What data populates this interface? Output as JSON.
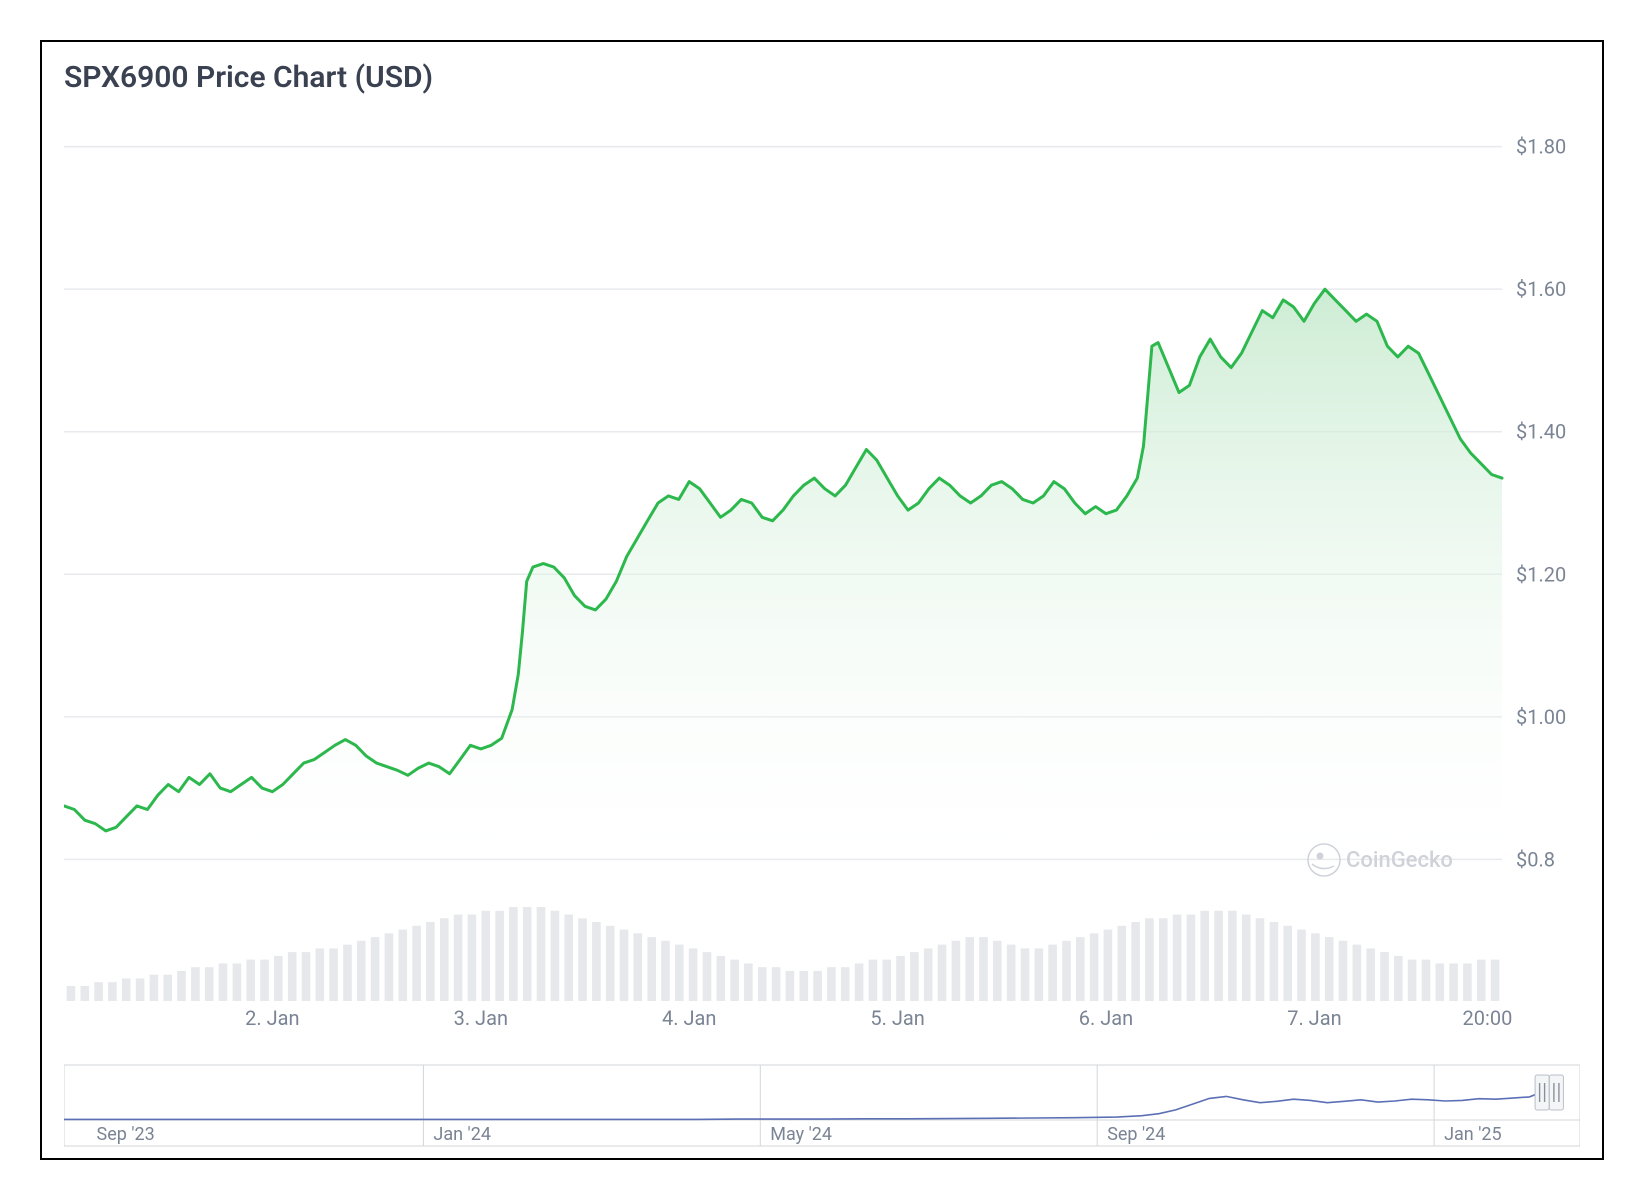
{
  "title": "SPX6900 Price Chart (USD)",
  "watermark": "CoinGecko",
  "main_chart": {
    "type": "area",
    "line_color": "#2db84d",
    "area_gradient_top": "#c4e9cc",
    "area_gradient_bottom": "#ffffff",
    "background_color": "#ffffff",
    "grid_color": "#e7e9ed",
    "label_color": "#7a8494",
    "title_color": "#3a4150",
    "title_fontsize": 30,
    "label_fontsize": 20,
    "line_width": 3,
    "y_axis": {
      "min": 0.75,
      "max": 1.85,
      "ticks": [
        0.8,
        1.0,
        1.2,
        1.4,
        1.6,
        1.8
      ],
      "tick_labels": [
        "$0.8",
        "$1.00",
        "$1.20",
        "$1.40",
        "$1.60",
        "$1.80"
      ]
    },
    "x_axis": {
      "start": 1.0,
      "end": 7.9,
      "ticks": [
        2,
        3,
        4,
        5,
        6,
        7,
        7.83
      ],
      "tick_labels": [
        "2. Jan",
        "3. Jan",
        "4. Jan",
        "5. Jan",
        "6. Jan",
        "7. Jan",
        "20:00"
      ]
    },
    "series": [
      [
        1.0,
        0.875
      ],
      [
        1.05,
        0.87
      ],
      [
        1.1,
        0.855
      ],
      [
        1.15,
        0.85
      ],
      [
        1.2,
        0.84
      ],
      [
        1.25,
        0.845
      ],
      [
        1.3,
        0.86
      ],
      [
        1.35,
        0.875
      ],
      [
        1.4,
        0.87
      ],
      [
        1.45,
        0.89
      ],
      [
        1.5,
        0.905
      ],
      [
        1.55,
        0.895
      ],
      [
        1.6,
        0.915
      ],
      [
        1.65,
        0.905
      ],
      [
        1.7,
        0.92
      ],
      [
        1.75,
        0.9
      ],
      [
        1.8,
        0.895
      ],
      [
        1.85,
        0.905
      ],
      [
        1.9,
        0.915
      ],
      [
        1.95,
        0.9
      ],
      [
        2.0,
        0.895
      ],
      [
        2.05,
        0.905
      ],
      [
        2.1,
        0.92
      ],
      [
        2.15,
        0.935
      ],
      [
        2.2,
        0.94
      ],
      [
        2.25,
        0.95
      ],
      [
        2.3,
        0.96
      ],
      [
        2.35,
        0.968
      ],
      [
        2.4,
        0.96
      ],
      [
        2.45,
        0.945
      ],
      [
        2.5,
        0.935
      ],
      [
        2.55,
        0.93
      ],
      [
        2.6,
        0.925
      ],
      [
        2.65,
        0.918
      ],
      [
        2.7,
        0.928
      ],
      [
        2.75,
        0.935
      ],
      [
        2.8,
        0.93
      ],
      [
        2.85,
        0.92
      ],
      [
        2.9,
        0.94
      ],
      [
        2.95,
        0.96
      ],
      [
        3.0,
        0.955
      ],
      [
        3.05,
        0.96
      ],
      [
        3.1,
        0.97
      ],
      [
        3.15,
        1.01
      ],
      [
        3.18,
        1.06
      ],
      [
        3.2,
        1.12
      ],
      [
        3.22,
        1.19
      ],
      [
        3.25,
        1.21
      ],
      [
        3.3,
        1.215
      ],
      [
        3.35,
        1.21
      ],
      [
        3.4,
        1.195
      ],
      [
        3.45,
        1.17
      ],
      [
        3.5,
        1.155
      ],
      [
        3.55,
        1.15
      ],
      [
        3.6,
        1.165
      ],
      [
        3.65,
        1.19
      ],
      [
        3.7,
        1.225
      ],
      [
        3.75,
        1.25
      ],
      [
        3.8,
        1.275
      ],
      [
        3.85,
        1.3
      ],
      [
        3.9,
        1.31
      ],
      [
        3.95,
        1.305
      ],
      [
        4.0,
        1.33
      ],
      [
        4.05,
        1.32
      ],
      [
        4.1,
        1.3
      ],
      [
        4.15,
        1.28
      ],
      [
        4.2,
        1.29
      ],
      [
        4.25,
        1.305
      ],
      [
        4.3,
        1.3
      ],
      [
        4.35,
        1.28
      ],
      [
        4.4,
        1.275
      ],
      [
        4.45,
        1.29
      ],
      [
        4.5,
        1.31
      ],
      [
        4.55,
        1.325
      ],
      [
        4.6,
        1.335
      ],
      [
        4.65,
        1.32
      ],
      [
        4.7,
        1.31
      ],
      [
        4.75,
        1.325
      ],
      [
        4.8,
        1.35
      ],
      [
        4.85,
        1.375
      ],
      [
        4.9,
        1.36
      ],
      [
        4.95,
        1.335
      ],
      [
        5.0,
        1.31
      ],
      [
        5.05,
        1.29
      ],
      [
        5.1,
        1.3
      ],
      [
        5.15,
        1.32
      ],
      [
        5.2,
        1.335
      ],
      [
        5.25,
        1.325
      ],
      [
        5.3,
        1.31
      ],
      [
        5.35,
        1.3
      ],
      [
        5.4,
        1.31
      ],
      [
        5.45,
        1.325
      ],
      [
        5.5,
        1.33
      ],
      [
        5.55,
        1.32
      ],
      [
        5.6,
        1.305
      ],
      [
        5.65,
        1.3
      ],
      [
        5.7,
        1.31
      ],
      [
        5.75,
        1.33
      ],
      [
        5.8,
        1.32
      ],
      [
        5.85,
        1.3
      ],
      [
        5.9,
        1.285
      ],
      [
        5.95,
        1.295
      ],
      [
        6.0,
        1.285
      ],
      [
        6.05,
        1.29
      ],
      [
        6.1,
        1.31
      ],
      [
        6.15,
        1.335
      ],
      [
        6.18,
        1.38
      ],
      [
        6.2,
        1.45
      ],
      [
        6.22,
        1.52
      ],
      [
        6.25,
        1.525
      ],
      [
        6.3,
        1.49
      ],
      [
        6.35,
        1.455
      ],
      [
        6.4,
        1.465
      ],
      [
        6.45,
        1.505
      ],
      [
        6.5,
        1.53
      ],
      [
        6.55,
        1.505
      ],
      [
        6.6,
        1.49
      ],
      [
        6.65,
        1.51
      ],
      [
        6.7,
        1.54
      ],
      [
        6.75,
        1.57
      ],
      [
        6.8,
        1.56
      ],
      [
        6.85,
        1.585
      ],
      [
        6.9,
        1.575
      ],
      [
        6.95,
        1.555
      ],
      [
        7.0,
        1.58
      ],
      [
        7.05,
        1.6
      ],
      [
        7.1,
        1.585
      ],
      [
        7.15,
        1.57
      ],
      [
        7.2,
        1.555
      ],
      [
        7.25,
        1.565
      ],
      [
        7.3,
        1.555
      ],
      [
        7.35,
        1.52
      ],
      [
        7.4,
        1.505
      ],
      [
        7.45,
        1.52
      ],
      [
        7.5,
        1.51
      ],
      [
        7.55,
        1.48
      ],
      [
        7.6,
        1.45
      ],
      [
        7.65,
        1.42
      ],
      [
        7.7,
        1.39
      ],
      [
        7.75,
        1.37
      ],
      [
        7.8,
        1.355
      ],
      [
        7.85,
        1.34
      ],
      [
        7.9,
        1.335
      ]
    ],
    "volume": {
      "bar_color": "#e6e8eb",
      "values": [
        8,
        8,
        10,
        10,
        12,
        12,
        14,
        14,
        16,
        18,
        18,
        20,
        20,
        22,
        22,
        24,
        26,
        26,
        28,
        28,
        30,
        32,
        34,
        36,
        38,
        40,
        42,
        44,
        46,
        46,
        48,
        48,
        50,
        50,
        50,
        48,
        46,
        44,
        42,
        40,
        38,
        36,
        34,
        32,
        30,
        28,
        26,
        24,
        22,
        20,
        18,
        18,
        16,
        16,
        16,
        18,
        18,
        20,
        22,
        22,
        24,
        26,
        28,
        30,
        32,
        34,
        34,
        32,
        30,
        28,
        28,
        30,
        32,
        34,
        36,
        38,
        40,
        42,
        44,
        44,
        46,
        46,
        48,
        48,
        48,
        46,
        44,
        42,
        40,
        38,
        36,
        34,
        32,
        30,
        28,
        26,
        24,
        22,
        22,
        20,
        20,
        20,
        22,
        22
      ]
    }
  },
  "navigator": {
    "line_color": "#5b6fb5",
    "sep_color": "#d3d6da",
    "label_color": "#7a8494",
    "x_axis": {
      "start": 0,
      "end": 18,
      "ticks": [
        0.6,
        4.6,
        8.6,
        12.6,
        16.6
      ],
      "tick_labels": [
        "Sep '23",
        "Jan '24",
        "May '24",
        "Sep '24",
        "Jan '25"
      ]
    },
    "y_min": 0,
    "y_max": 1.7,
    "series": [
      [
        0.0,
        0.02
      ],
      [
        0.5,
        0.02
      ],
      [
        1.0,
        0.02
      ],
      [
        1.5,
        0.02
      ],
      [
        2.0,
        0.02
      ],
      [
        2.5,
        0.02
      ],
      [
        3.0,
        0.02
      ],
      [
        3.5,
        0.02
      ],
      [
        4.0,
        0.02
      ],
      [
        4.5,
        0.02
      ],
      [
        5.0,
        0.02
      ],
      [
        5.5,
        0.02
      ],
      [
        6.0,
        0.02
      ],
      [
        6.5,
        0.02
      ],
      [
        7.0,
        0.02
      ],
      [
        7.5,
        0.02
      ],
      [
        8.0,
        0.03
      ],
      [
        8.5,
        0.03
      ],
      [
        9.0,
        0.03
      ],
      [
        9.5,
        0.04
      ],
      [
        10.0,
        0.04
      ],
      [
        10.5,
        0.05
      ],
      [
        11.0,
        0.06
      ],
      [
        11.5,
        0.07
      ],
      [
        12.0,
        0.08
      ],
      [
        12.5,
        0.1
      ],
      [
        12.8,
        0.15
      ],
      [
        13.0,
        0.22
      ],
      [
        13.2,
        0.35
      ],
      [
        13.4,
        0.55
      ],
      [
        13.6,
        0.75
      ],
      [
        13.8,
        0.82
      ],
      [
        14.0,
        0.7
      ],
      [
        14.2,
        0.6
      ],
      [
        14.4,
        0.65
      ],
      [
        14.6,
        0.72
      ],
      [
        14.8,
        0.68
      ],
      [
        15.0,
        0.6
      ],
      [
        15.2,
        0.65
      ],
      [
        15.4,
        0.7
      ],
      [
        15.6,
        0.62
      ],
      [
        15.8,
        0.66
      ],
      [
        16.0,
        0.72
      ],
      [
        16.2,
        0.7
      ],
      [
        16.4,
        0.66
      ],
      [
        16.6,
        0.68
      ],
      [
        16.8,
        0.74
      ],
      [
        17.0,
        0.72
      ],
      [
        17.2,
        0.76
      ],
      [
        17.4,
        0.8
      ],
      [
        17.5,
        0.92
      ],
      [
        17.6,
        1.1
      ],
      [
        17.7,
        1.3
      ]
    ],
    "selection": {
      "start": 17.55,
      "end": 17.72
    }
  }
}
